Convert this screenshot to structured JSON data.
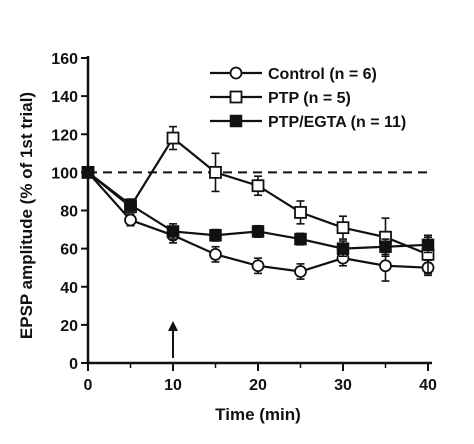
{
  "chart_data": {
    "type": "line",
    "xlabel": "Time (min)",
    "ylabel": "EPSP amplitude (% of 1st trial)",
    "xlim": [
      0,
      40
    ],
    "ylim": [
      0,
      160
    ],
    "xticks": [
      0,
      10,
      20,
      30,
      40
    ],
    "yticks": [
      0,
      20,
      40,
      60,
      80,
      100,
      120,
      140,
      160
    ],
    "x_minor_ticks": [
      5,
      15,
      25,
      35
    ],
    "grid": false,
    "legend_position": "top-right",
    "reference_line": {
      "y": 100,
      "style": "dashed"
    },
    "annotation": {
      "type": "arrow",
      "x": 10,
      "pointing": "up"
    },
    "x": [
      0,
      5,
      10,
      15,
      20,
      25,
      30,
      35,
      40
    ],
    "series": [
      {
        "name": "Control",
        "n_label": "(n = 6)",
        "marker": "circle-open",
        "values": [
          100,
          75,
          67,
          57,
          51,
          48,
          55,
          51,
          50
        ],
        "errors": [
          0,
          3,
          4,
          4,
          4,
          4,
          4,
          8,
          4
        ]
      },
      {
        "name": "PTP",
        "n_label": "(n = 5)",
        "marker": "square-open",
        "values": [
          100,
          82,
          118,
          100,
          93,
          79,
          71,
          66,
          57
        ],
        "errors": [
          0,
          3,
          6,
          10,
          5,
          6,
          6,
          10,
          10
        ]
      },
      {
        "name": "PTP/EGTA",
        "n_label": "(n = 11)",
        "marker": "square-filled",
        "values": [
          100,
          83,
          69,
          67,
          69,
          65,
          60,
          61,
          62
        ],
        "errors": [
          0,
          3,
          4,
          3,
          3,
          3,
          4,
          4,
          4
        ]
      }
    ]
  }
}
